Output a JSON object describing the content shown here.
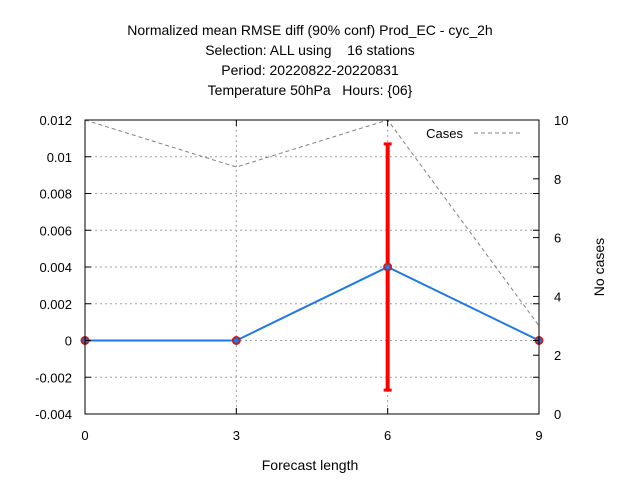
{
  "chart_data": {
    "type": "line",
    "title_lines": [
      "Normalized mean RMSE diff (90% conf) Prod_EC - cyc_2h",
      "Selection: ALL using    16 stations",
      "Period: 20220822-20220831",
      "Temperature 50hPa   Hours: {06}"
    ],
    "xlabel": "Forecast length",
    "ylabel": "",
    "y2label": "No cases",
    "x": [
      0,
      3,
      6,
      9
    ],
    "xticks": [
      "0",
      "3",
      "6",
      "9"
    ],
    "xlim": [
      0,
      9
    ],
    "ylim": [
      -0.004,
      0.012
    ],
    "yticks": [
      "-0.004",
      "-0.002",
      "0",
      "0.002",
      "0.004",
      "0.006",
      "0.008",
      "0.01",
      "0.012"
    ],
    "y2lim": [
      0,
      10
    ],
    "y2ticks": [
      "0",
      "2",
      "4",
      "6",
      "8",
      "10"
    ],
    "grid": true,
    "legend_position": "top-right",
    "series": [
      {
        "values": [
          0,
          0,
          0.004,
          0
        ],
        "color": "#1f77e8",
        "marker_color": "#c02020",
        "axis": "left"
      },
      {
        "name": "Cases",
        "values": [
          10,
          8.4,
          10,
          3
        ],
        "color": "#808080",
        "dashed": true,
        "axis": "right"
      }
    ],
    "error_bars": [
      {
        "x": 6,
        "low": -0.0027,
        "high": 0.0107,
        "color": "#ff0000"
      }
    ]
  }
}
